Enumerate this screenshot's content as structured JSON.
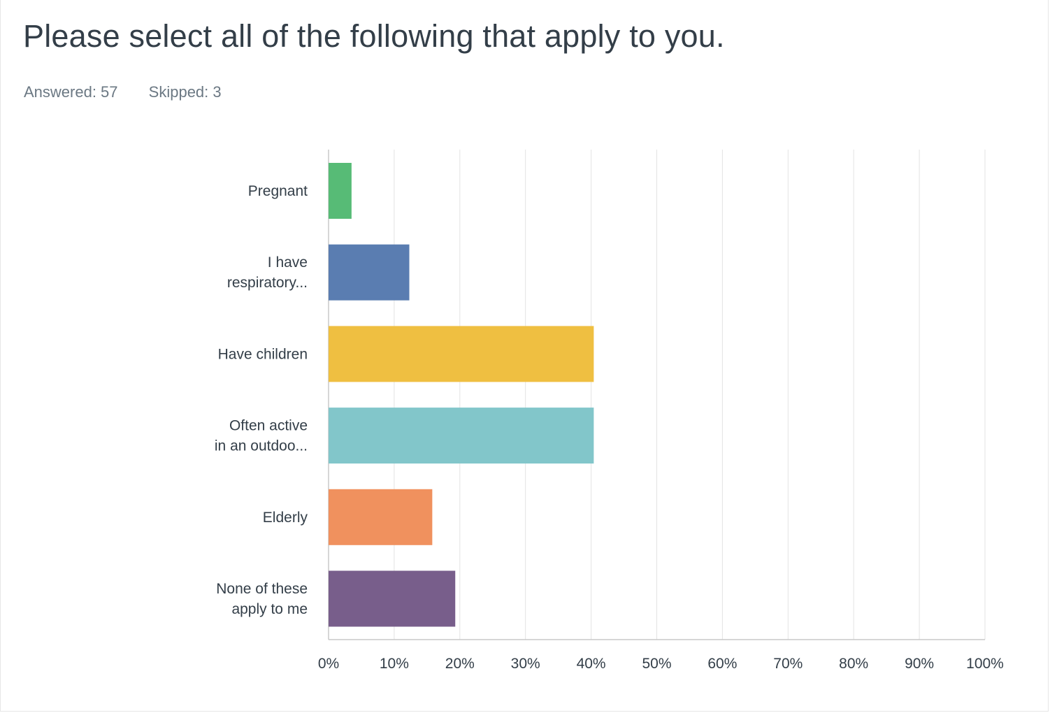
{
  "question": {
    "title": "Please select all of the following that apply to you.",
    "answered_label": "Answered: 57",
    "skipped_label": "Skipped: 3"
  },
  "colors": {
    "grid": "#e3e3e3",
    "axis": "#c8c8c8",
    "text": "#333e48",
    "muted": "#6b7883"
  },
  "chart_data": {
    "type": "bar",
    "orientation": "horizontal",
    "title": "",
    "xlabel": "",
    "ylabel": "",
    "xlim": [
      0,
      100
    ],
    "grid": true,
    "x_ticks": [
      "0%",
      "10%",
      "20%",
      "30%",
      "40%",
      "50%",
      "60%",
      "70%",
      "80%",
      "90%",
      "100%"
    ],
    "categories": [
      [
        "Pregnant"
      ],
      [
        "I have",
        "respiratory..."
      ],
      [
        "Have children"
      ],
      [
        "Often active",
        "in an outdoo..."
      ],
      [
        "Elderly"
      ],
      [
        "None of these",
        "apply to me"
      ]
    ],
    "values": [
      3.5,
      12.3,
      40.4,
      40.4,
      15.8,
      19.3
    ],
    "bar_colors": [
      "#57bb76",
      "#5a7db1",
      "#efbf41",
      "#82c6ca",
      "#f0915e",
      "#785e8b"
    ]
  }
}
